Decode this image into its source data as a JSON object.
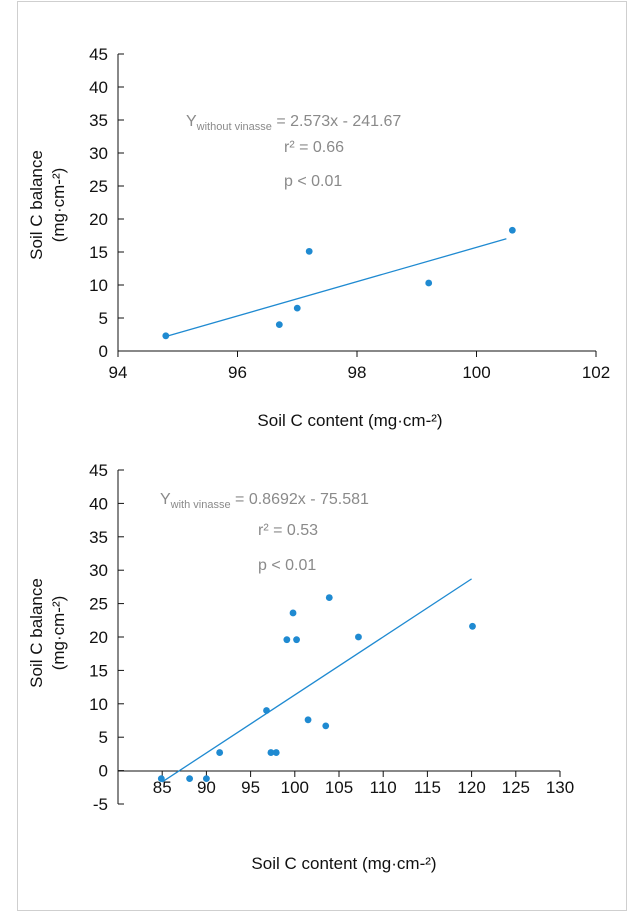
{
  "chart_data": [
    {
      "type": "scatter",
      "title": "",
      "xlabel": "Soil C content (mg·cm-²)",
      "ylabel": "Soil C balance",
      "ylabel_unit": "(mg·cm-²)",
      "xlim": [
        94,
        102
      ],
      "ylim": [
        0,
        45
      ],
      "x_ticks": [
        94,
        96,
        98,
        100,
        102
      ],
      "y_ticks": [
        0,
        5,
        10,
        15,
        20,
        25,
        30,
        35,
        40,
        45
      ],
      "grid": false,
      "color": "#1f8ad1",
      "points": [
        {
          "x": 94.8,
          "y": 2.3
        },
        {
          "x": 96.7,
          "y": 4.0
        },
        {
          "x": 97.0,
          "y": 6.5
        },
        {
          "x": 97.2,
          "y": 15.1
        },
        {
          "x": 99.2,
          "y": 10.3
        },
        {
          "x": 100.6,
          "y": 18.3
        }
      ],
      "trendline": {
        "x_start": 94.8,
        "x_end": 100.5,
        "y_start": 2.2,
        "y_end": 17.0
      },
      "annotation": {
        "eq_prefix": "Y",
        "eq_subscript": "without vinasse",
        "eq_rest": " = 2.573x - 241.67",
        "r2": "r² = 0.66",
        "p": "p < 0.01"
      }
    },
    {
      "type": "scatter",
      "title": "",
      "xlabel": "Soil C content  (mg·cm-²)",
      "ylabel": "Soil C balance",
      "ylabel_unit": "(mg·cm-²)",
      "xlim": [
        80,
        130
      ],
      "ylim": [
        -5,
        45
      ],
      "x_ticks": [
        85,
        90,
        95,
        100,
        105,
        110,
        115,
        120,
        125,
        130
      ],
      "y_ticks": [
        -5,
        0,
        5,
        10,
        15,
        20,
        25,
        30,
        35,
        40,
        45
      ],
      "grid": false,
      "color": "#1f8ad1",
      "points": [
        {
          "x": 84.9,
          "y": -1.2
        },
        {
          "x": 88.1,
          "y": -1.2
        },
        {
          "x": 90.0,
          "y": -1.2
        },
        {
          "x": 91.5,
          "y": 2.7
        },
        {
          "x": 96.8,
          "y": 9.0
        },
        {
          "x": 97.3,
          "y": 2.7
        },
        {
          "x": 97.9,
          "y": 2.7
        },
        {
          "x": 99.1,
          "y": 19.6
        },
        {
          "x": 99.8,
          "y": 23.6
        },
        {
          "x": 100.2,
          "y": 19.6
        },
        {
          "x": 101.5,
          "y": 7.6
        },
        {
          "x": 103.5,
          "y": 6.7
        },
        {
          "x": 103.9,
          "y": 25.9
        },
        {
          "x": 107.2,
          "y": 20.0
        },
        {
          "x": 120.1,
          "y": 21.6
        }
      ],
      "trendline": {
        "x_start": 85.0,
        "x_end": 120.0,
        "y_start": -1.7,
        "y_end": 28.7
      },
      "annotation": {
        "eq_prefix": "Y",
        "eq_subscript": "with vinasse",
        "eq_rest": " = 0.8692x - 75.581",
        "r2": "r² = 0.53",
        "p": "p < 0.01"
      }
    }
  ]
}
